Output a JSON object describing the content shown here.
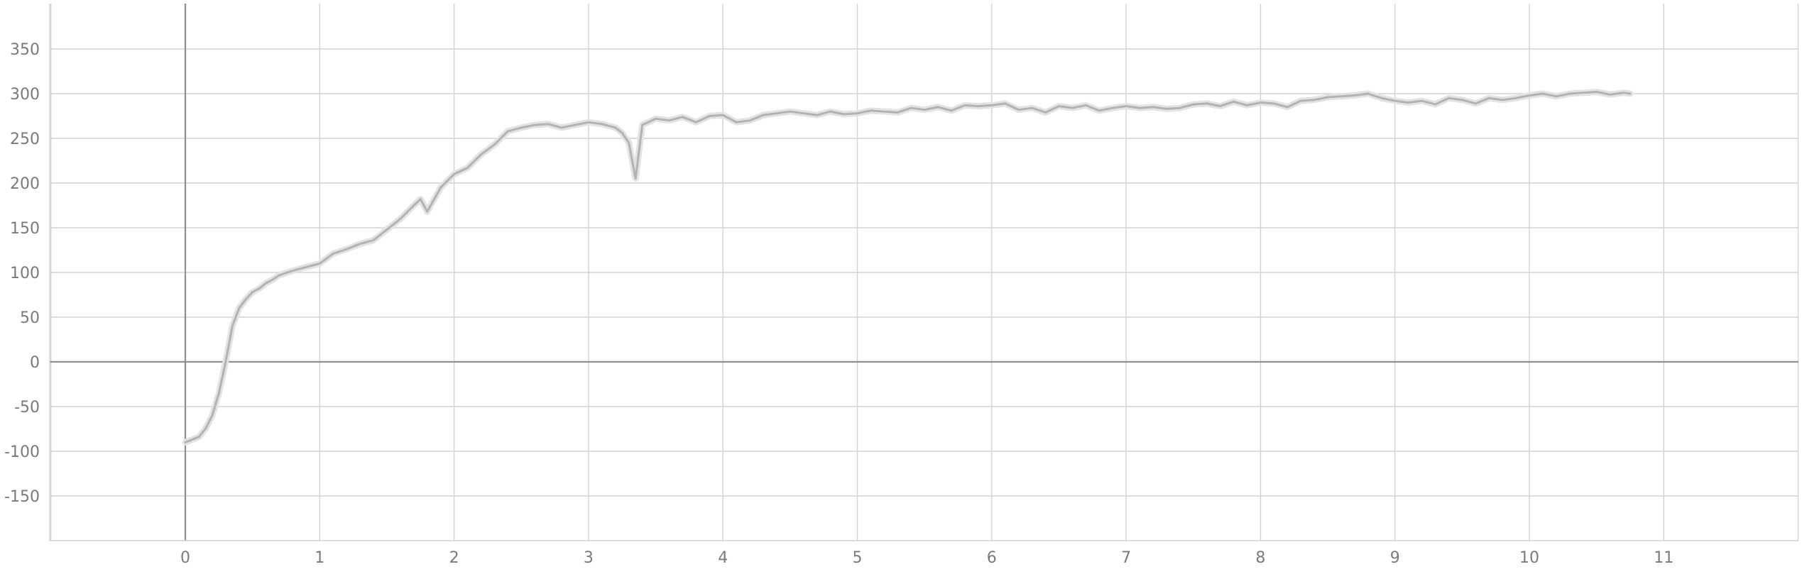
{
  "chart_data": {
    "type": "line",
    "title": "",
    "xlabel": "",
    "ylabel": "",
    "xlim": [
      -1,
      12
    ],
    "ylim": [
      -200,
      400
    ],
    "xticks": [
      0,
      1,
      2,
      3,
      4,
      5,
      6,
      7,
      8,
      9,
      10,
      11
    ],
    "yticks": [
      -150,
      -100,
      -50,
      0,
      50,
      100,
      150,
      200,
      250,
      300,
      350
    ],
    "grid": true,
    "legend": "none",
    "colors": {
      "smoothed": "#b3b3b3",
      "raw": "#e3e3e3",
      "grid": "#d2d2d2",
      "zero_axis": "#8f8f8f",
      "tick_label": "#7a7a7a"
    },
    "series": [
      {
        "role": "smoothed",
        "x": [
          0,
          0.05,
          0.1,
          0.15,
          0.2,
          0.25,
          0.3,
          0.35,
          0.4,
          0.45,
          0.5,
          0.55,
          0.6,
          0.65,
          0.7,
          0.8,
          0.9,
          1.0,
          1.1,
          1.2,
          1.3,
          1.4,
          1.5,
          1.6,
          1.7,
          1.75,
          1.8,
          1.9,
          2.0,
          2.1,
          2.2,
          2.3,
          2.4,
          2.5,
          2.6,
          2.7,
          2.8,
          2.9,
          3.0,
          3.1,
          3.2,
          3.25,
          3.3,
          3.35,
          3.4,
          3.5,
          3.6,
          3.7,
          3.8,
          3.9,
          4.0,
          4.1,
          4.2,
          4.3,
          4.4,
          4.5,
          4.6,
          4.7,
          4.8,
          4.9,
          5.0,
          5.1,
          5.2,
          5.3,
          5.4,
          5.5,
          5.6,
          5.7,
          5.8,
          5.9,
          6.0,
          6.1,
          6.2,
          6.3,
          6.4,
          6.5,
          6.6,
          6.7,
          6.8,
          6.9,
          7.0,
          7.1,
          7.2,
          7.3,
          7.4,
          7.5,
          7.6,
          7.7,
          7.8,
          7.9,
          8.0,
          8.1,
          8.2,
          8.3,
          8.4,
          8.5,
          8.6,
          8.7,
          8.8,
          8.9,
          9.0,
          9.1,
          9.2,
          9.3,
          9.4,
          9.5,
          9.6,
          9.7,
          9.8,
          9.9,
          10.0,
          10.1,
          10.2,
          10.3,
          10.4,
          10.5,
          10.6,
          10.7,
          10.75
        ],
        "y": [
          -90,
          -87,
          -84,
          -75,
          -60,
          -35,
          0,
          40,
          60,
          70,
          78,
          82,
          88,
          92,
          97,
          102,
          106,
          110,
          121,
          126,
          132,
          136,
          148,
          160,
          175,
          182,
          168,
          195,
          210,
          217,
          232,
          243,
          258,
          262,
          265,
          266,
          262,
          265,
          268,
          266,
          262,
          256,
          245,
          205,
          265,
          272,
          270,
          274,
          268,
          275,
          276,
          268,
          270,
          276,
          278,
          280,
          278,
          276,
          280,
          277,
          278,
          281,
          280,
          279,
          284,
          282,
          285,
          281,
          287,
          286,
          287,
          289,
          282,
          284,
          279,
          286,
          284,
          287,
          281,
          284,
          286,
          284,
          285,
          283,
          284,
          288,
          289,
          286,
          291,
          287,
          290,
          289,
          285,
          292,
          293,
          296,
          297,
          298,
          300,
          295,
          292,
          290,
          292,
          288,
          295,
          293,
          289,
          295,
          293,
          295,
          298,
          300,
          297,
          300,
          301,
          302,
          299,
          301,
          300
        ]
      }
    ]
  }
}
